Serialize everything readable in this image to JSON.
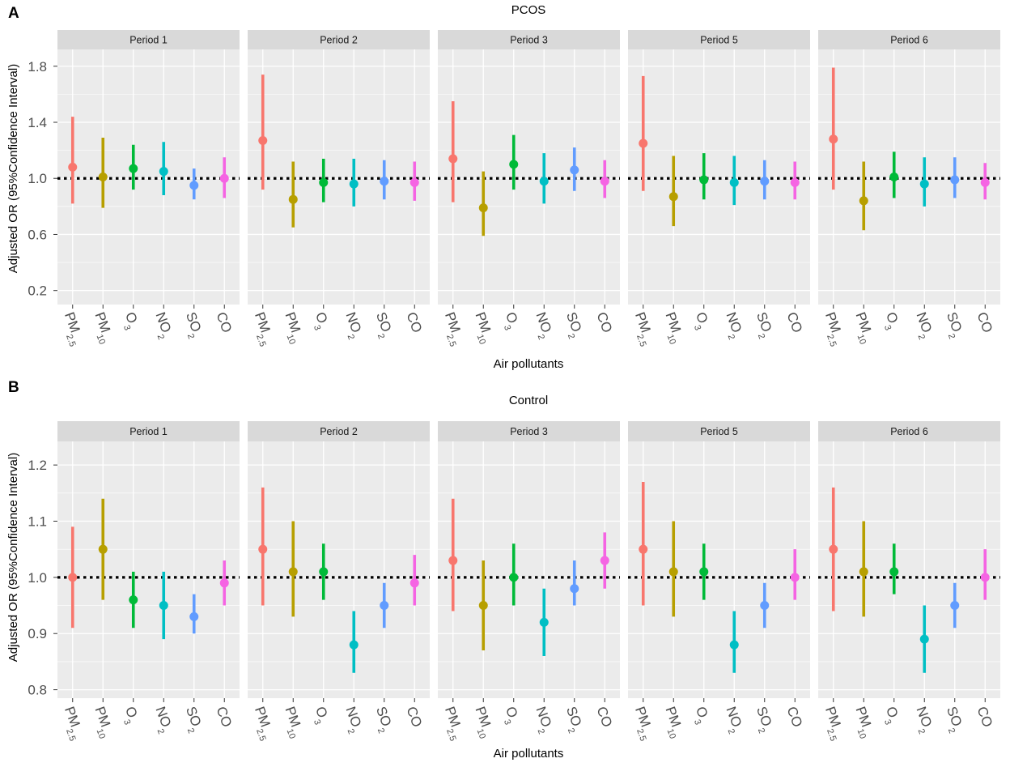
{
  "chart_data": [
    {
      "type": "pointrange",
      "panel_label": "A",
      "title": "PCOS",
      "xlabel": "Air pollutants",
      "ylabel": "Adjusted OR (95%Confidence Interval)",
      "ylim": [
        0.1,
        1.92
      ],
      "yticks": [
        "0.2",
        "0.6",
        "1.0",
        "1.4",
        "1.8"
      ],
      "ytick_values": [
        0.2,
        0.6,
        1.0,
        1.4,
        1.8
      ],
      "reference_line": 1.0,
      "categories": [
        {
          "main": "PM",
          "sub": "2.5"
        },
        {
          "main": "PM",
          "sub": "10"
        },
        {
          "main": "O",
          "sub": "3"
        },
        {
          "main": "NO",
          "sub": "2"
        },
        {
          "main": "SO",
          "sub": "2"
        },
        {
          "main": "CO",
          "sub": ""
        }
      ],
      "facets": [
        {
          "label": "Period 1",
          "or": [
            1.08,
            1.01,
            1.07,
            1.05,
            0.95,
            1.0
          ],
          "lower": [
            0.82,
            0.79,
            0.92,
            0.88,
            0.85,
            0.86
          ],
          "upper": [
            1.44,
            1.29,
            1.24,
            1.26,
            1.07,
            1.15
          ]
        },
        {
          "label": "Period 2",
          "or": [
            1.27,
            0.85,
            0.97,
            0.96,
            0.98,
            0.97
          ],
          "lower": [
            0.92,
            0.65,
            0.83,
            0.8,
            0.85,
            0.84
          ],
          "upper": [
            1.74,
            1.12,
            1.14,
            1.14,
            1.13,
            1.12
          ]
        },
        {
          "label": "Period 3",
          "or": [
            1.14,
            0.79,
            1.1,
            0.98,
            1.06,
            0.98
          ],
          "lower": [
            0.83,
            0.59,
            0.92,
            0.82,
            0.91,
            0.86
          ],
          "upper": [
            1.55,
            1.05,
            1.31,
            1.18,
            1.22,
            1.13
          ]
        },
        {
          "label": "Period 5",
          "or": [
            1.25,
            0.87,
            0.99,
            0.97,
            0.98,
            0.97
          ],
          "lower": [
            0.91,
            0.66,
            0.85,
            0.81,
            0.85,
            0.85
          ],
          "upper": [
            1.73,
            1.16,
            1.18,
            1.16,
            1.13,
            1.12
          ]
        },
        {
          "label": "Period 6",
          "or": [
            1.28,
            0.84,
            1.01,
            0.96,
            0.99,
            0.97
          ],
          "lower": [
            0.92,
            0.63,
            0.86,
            0.8,
            0.86,
            0.85
          ],
          "upper": [
            1.79,
            1.12,
            1.19,
            1.15,
            1.15,
            1.11
          ]
        }
      ]
    },
    {
      "type": "pointrange",
      "panel_label": "B",
      "title": "Control",
      "xlabel": "Air pollutants",
      "ylabel": "Adjusted OR (95%Confidence Interval)",
      "ylim": [
        0.785,
        1.242
      ],
      "yticks": [
        "0.8",
        "0.9",
        "1.0",
        "1.1",
        "1.2"
      ],
      "ytick_values": [
        0.8,
        0.9,
        1.0,
        1.1,
        1.2
      ],
      "reference_line": 1.0,
      "categories": [
        {
          "main": "PM",
          "sub": "2.5"
        },
        {
          "main": "PM",
          "sub": "10"
        },
        {
          "main": "O",
          "sub": "3"
        },
        {
          "main": "NO",
          "sub": "2"
        },
        {
          "main": "SO",
          "sub": "2"
        },
        {
          "main": "CO",
          "sub": ""
        }
      ],
      "facets": [
        {
          "label": "Period 1",
          "or": [
            1.0,
            1.05,
            0.96,
            0.95,
            0.93,
            0.99
          ],
          "lower": [
            0.91,
            0.96,
            0.91,
            0.89,
            0.9,
            0.95
          ],
          "upper": [
            1.09,
            1.14,
            1.01,
            1.01,
            0.97,
            1.03
          ]
        },
        {
          "label": "Period 2",
          "or": [
            1.05,
            1.01,
            1.01,
            0.88,
            0.95,
            0.99
          ],
          "lower": [
            0.95,
            0.93,
            0.96,
            0.83,
            0.91,
            0.95
          ],
          "upper": [
            1.16,
            1.1,
            1.06,
            0.94,
            0.99,
            1.04
          ]
        },
        {
          "label": "Period 3",
          "or": [
            1.03,
            0.95,
            1.0,
            0.92,
            0.98,
            1.03
          ],
          "lower": [
            0.94,
            0.87,
            0.95,
            0.86,
            0.95,
            0.98
          ],
          "upper": [
            1.14,
            1.03,
            1.06,
            0.98,
            1.03,
            1.08
          ]
        },
        {
          "label": "Period 5",
          "or": [
            1.05,
            1.01,
            1.01,
            0.88,
            0.95,
            1.0
          ],
          "lower": [
            0.95,
            0.93,
            0.96,
            0.83,
            0.91,
            0.96
          ],
          "upper": [
            1.17,
            1.1,
            1.06,
            0.94,
            0.99,
            1.05
          ]
        },
        {
          "label": "Period 6",
          "or": [
            1.05,
            1.01,
            1.01,
            0.89,
            0.95,
            1.0
          ],
          "lower": [
            0.94,
            0.93,
            0.97,
            0.83,
            0.91,
            0.96
          ],
          "upper": [
            1.16,
            1.1,
            1.06,
            0.95,
            0.99,
            1.05
          ]
        }
      ]
    }
  ],
  "colors": {
    "series": [
      "#f8766d",
      "#b79f00",
      "#00ba38",
      "#00bfc4",
      "#619cff",
      "#f564e3"
    ],
    "panel_bg": "#ebebeb",
    "strip_bg": "#d9d9d9",
    "gridline": "#ffffff",
    "reference_line": "#000000"
  }
}
